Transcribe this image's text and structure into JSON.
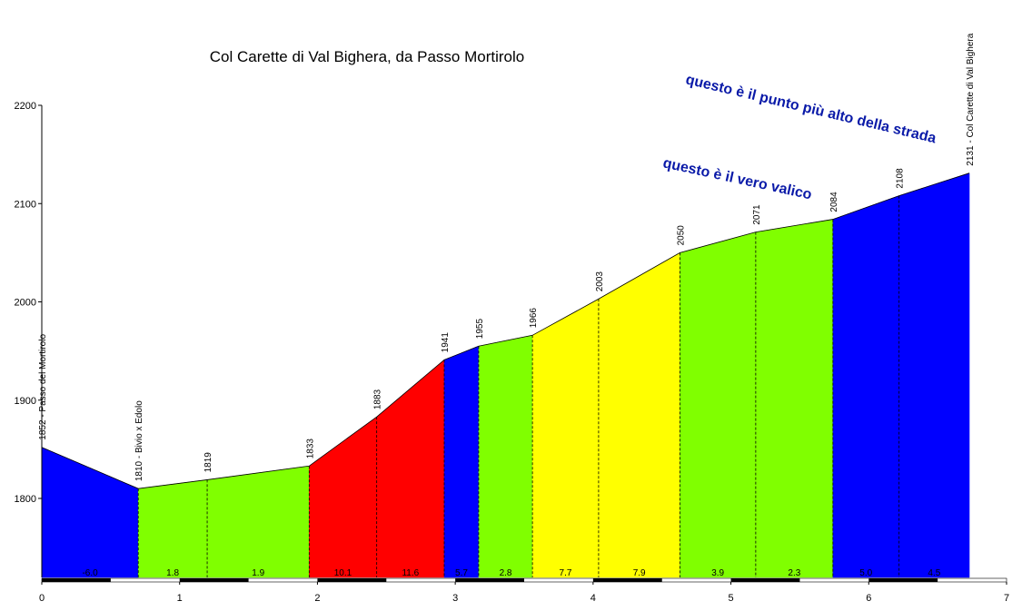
{
  "chart_data": {
    "type": "area",
    "title": "Col Carette di Val Bighera, da Passo Mortirolo",
    "xlim": [
      0,
      7
    ],
    "ylim": [
      1720,
      2200
    ],
    "x_ticks": [
      "0",
      "1",
      "2",
      "3",
      "4",
      "5",
      "6",
      "7"
    ],
    "y_ticks": [
      "1800",
      "1900",
      "2000",
      "2100",
      "2200"
    ],
    "points": [
      {
        "x": 0,
        "y": 1852,
        "label": "1852 - Passo del Mortirolo"
      },
      {
        "x": 0.7,
        "y": 1810,
        "label": "1810 - Bivio x Edolo"
      },
      {
        "x": 1.2,
        "y": 1819,
        "label": "1819"
      },
      {
        "x": 1.94,
        "y": 1833,
        "label": "1833"
      },
      {
        "x": 2.43,
        "y": 1883,
        "label": "1883"
      },
      {
        "x": 2.92,
        "y": 1941,
        "label": "1941"
      },
      {
        "x": 3.17,
        "y": 1955,
        "label": "1955"
      },
      {
        "x": 3.56,
        "y": 1966,
        "label": "1966"
      },
      {
        "x": 4.04,
        "y": 2003,
        "label": "2003"
      },
      {
        "x": 4.63,
        "y": 2050,
        "label": "2050"
      },
      {
        "x": 5.18,
        "y": 2071,
        "label": "2071"
      },
      {
        "x": 5.74,
        "y": 2084,
        "label": "2084"
      },
      {
        "x": 6.22,
        "y": 2108,
        "label": "2108"
      },
      {
        "x": 6.73,
        "y": 2131,
        "label": "2131 - Col Carette di Val Bighera"
      }
    ],
    "segments": [
      {
        "gradient": "-6.0",
        "color": "#0000ff"
      },
      {
        "gradient": "1.8",
        "color": "#80ff00"
      },
      {
        "gradient": "1.9",
        "color": "#80ff00"
      },
      {
        "gradient": "10.1",
        "color": "#ff0000"
      },
      {
        "gradient": "11.6",
        "color": "#ff0000"
      },
      {
        "gradient": "5.7",
        "color": "#0000ff"
      },
      {
        "gradient": "2.8",
        "color": "#80ff00"
      },
      {
        "gradient": "7.7",
        "color": "#ffff00"
      },
      {
        "gradient": "7.9",
        "color": "#ffff00"
      },
      {
        "gradient": "3.9",
        "color": "#80ff00"
      },
      {
        "gradient": "2.3",
        "color": "#80ff00"
      },
      {
        "gradient": "5.0",
        "color": "#0000ff"
      },
      {
        "gradient": "4.5",
        "color": "#0000ff"
      }
    ],
    "annotations": [
      {
        "text": "questo è il punto più alto della strada"
      },
      {
        "text": "questo è il vero valico"
      }
    ]
  }
}
